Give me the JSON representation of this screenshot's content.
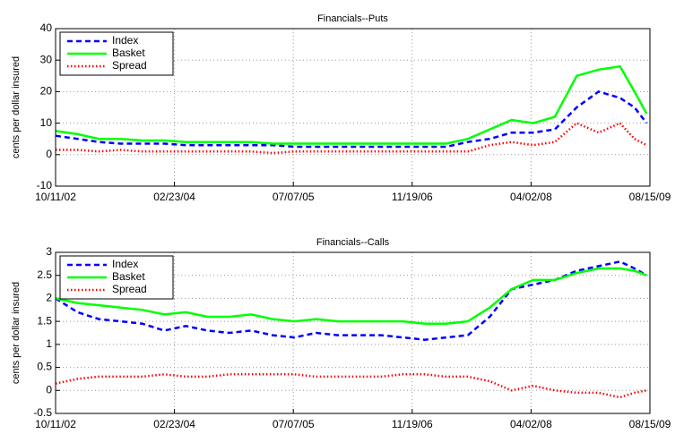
{
  "chart_data": [
    {
      "type": "line",
      "title": "Financials--Puts",
      "y_label": "cents per dollar insured",
      "x": [
        "10/11/02",
        "01/11/03",
        "04/11/03",
        "07/11/03",
        "10/11/03",
        "01/11/04",
        "04/11/04",
        "07/11/04",
        "10/11/04",
        "01/11/05",
        "04/11/05",
        "07/11/05",
        "10/11/05",
        "01/11/06",
        "04/11/06",
        "07/11/06",
        "10/11/06",
        "01/11/07",
        "04/11/07",
        "07/11/07",
        "10/11/07",
        "01/11/08",
        "04/11/08",
        "07/11/08",
        "10/11/08",
        "01/11/09",
        "04/11/09",
        "06/11/09",
        "08/01/09"
      ],
      "xlim": [
        "10/11/02",
        "08/15/09"
      ],
      "xticks": [
        "10/11/02",
        "02/23/04",
        "07/07/05",
        "11/19/06",
        "04/02/08",
        "08/15/09"
      ],
      "ylim": [
        -10,
        40
      ],
      "yticks": [
        -10,
        0,
        10,
        20,
        30,
        40
      ],
      "grid": true,
      "legend": "upper left",
      "series": [
        {
          "name": "Index",
          "color": "#0000ff",
          "linestyle": "dashed",
          "values": [
            6,
            5,
            4,
            3.5,
            3.5,
            3.5,
            3,
            3,
            3,
            3,
            3,
            2.5,
            2.5,
            2.5,
            2.5,
            2.5,
            2.5,
            2.5,
            2.5,
            4,
            5,
            7,
            7,
            8,
            15,
            20,
            18,
            15,
            10
          ]
        },
        {
          "name": "Basket",
          "color": "#00ff00",
          "linestyle": "solid",
          "values": [
            7.5,
            6.5,
            5,
            5,
            4.5,
            4.5,
            4,
            4,
            4,
            4,
            3.5,
            3.5,
            3.5,
            3.5,
            3.5,
            3.5,
            3.5,
            3.5,
            3.5,
            5,
            8,
            11,
            10,
            12,
            25,
            27,
            28,
            20,
            13
          ]
        },
        {
          "name": "Spread",
          "color": "#ff0000",
          "linestyle": "dotted",
          "values": [
            1.5,
            1.5,
            1,
            1.5,
            1,
            1,
            1,
            1,
            1,
            1,
            0.5,
            1,
            1,
            1,
            1,
            1,
            1,
            1,
            1,
            1,
            3,
            4,
            3,
            4,
            10,
            7,
            10,
            5,
            3
          ]
        }
      ]
    },
    {
      "type": "line",
      "title": "Financials--Calls",
      "y_label": "cents per dollar insured",
      "x": [
        "10/11/02",
        "01/11/03",
        "04/11/03",
        "07/11/03",
        "10/11/03",
        "01/11/04",
        "04/11/04",
        "07/11/04",
        "10/11/04",
        "01/11/05",
        "04/11/05",
        "07/11/05",
        "10/11/05",
        "01/11/06",
        "04/11/06",
        "07/11/06",
        "10/11/06",
        "01/11/07",
        "04/11/07",
        "07/11/07",
        "10/11/07",
        "01/11/08",
        "04/11/08",
        "07/11/08",
        "10/11/08",
        "01/11/09",
        "04/11/09",
        "06/11/09",
        "08/01/09"
      ],
      "xlim": [
        "10/11/02",
        "08/15/09"
      ],
      "xticks": [
        "10/11/02",
        "02/23/04",
        "07/07/05",
        "11/19/06",
        "04/02/08",
        "08/15/09"
      ],
      "ylim": [
        -0.5,
        3
      ],
      "yticks": [
        -0.5,
        0,
        0.5,
        1,
        1.5,
        2,
        2.5,
        3
      ],
      "grid": true,
      "legend": "upper left",
      "series": [
        {
          "name": "Index",
          "color": "#0000ff",
          "linestyle": "dashed",
          "values": [
            2.0,
            1.7,
            1.55,
            1.5,
            1.45,
            1.3,
            1.4,
            1.3,
            1.25,
            1.3,
            1.2,
            1.15,
            1.25,
            1.2,
            1.2,
            1.2,
            1.15,
            1.1,
            1.15,
            1.2,
            1.6,
            2.2,
            2.3,
            2.4,
            2.6,
            2.7,
            2.8,
            2.65,
            2.5
          ]
        },
        {
          "name": "Basket",
          "color": "#00ff00",
          "linestyle": "solid",
          "values": [
            2.0,
            1.9,
            1.85,
            1.8,
            1.75,
            1.65,
            1.7,
            1.6,
            1.6,
            1.65,
            1.55,
            1.5,
            1.55,
            1.5,
            1.5,
            1.5,
            1.5,
            1.45,
            1.45,
            1.5,
            1.8,
            2.2,
            2.4,
            2.4,
            2.55,
            2.65,
            2.65,
            2.6,
            2.5
          ]
        },
        {
          "name": "Spread",
          "color": "#ff0000",
          "linestyle": "dotted",
          "values": [
            0.15,
            0.25,
            0.3,
            0.3,
            0.3,
            0.35,
            0.3,
            0.3,
            0.35,
            0.35,
            0.35,
            0.35,
            0.3,
            0.3,
            0.3,
            0.3,
            0.35,
            0.35,
            0.3,
            0.3,
            0.2,
            0,
            0.1,
            0,
            -0.05,
            -0.05,
            -0.15,
            -0.05,
            0.0
          ]
        }
      ]
    }
  ]
}
